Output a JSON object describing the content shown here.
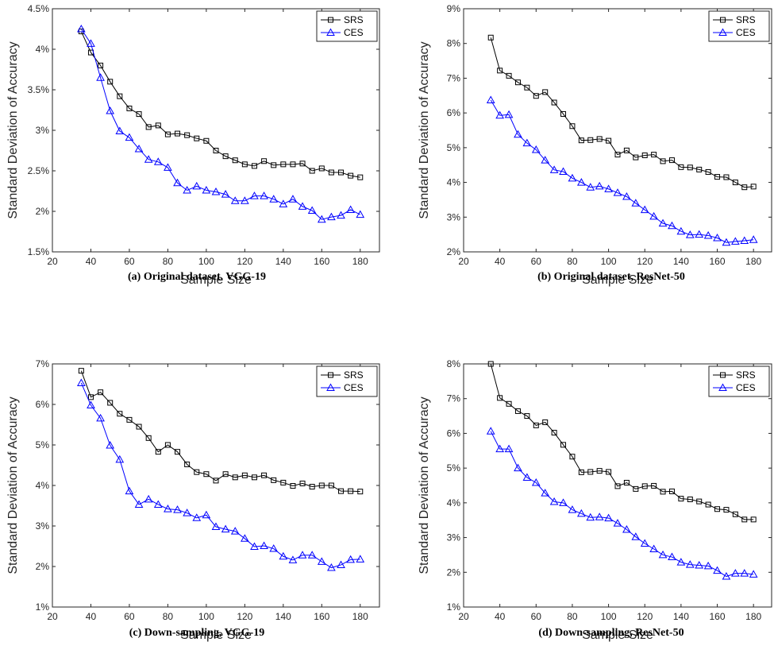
{
  "colors": {
    "SRS": "#000000",
    "CES": "#0000ff"
  },
  "chart_data": [
    {
      "type": "line",
      "caption": "(a) Original dataset. VGG-19",
      "xlabel": "Sample Size",
      "ylabel": "Standard Deviation of Accuracy",
      "xlim": [
        20,
        190
      ],
      "ylim": [
        1.5,
        4.5
      ],
      "xticks": [
        20,
        40,
        60,
        80,
        100,
        120,
        140,
        160,
        180
      ],
      "yticks": [
        1.5,
        2,
        2.5,
        3,
        3.5,
        4,
        4.5
      ],
      "ytick_labels": [
        "1.5%",
        "2%",
        "2.5%",
        "3%",
        "3.5%",
        "4%",
        "4.5%"
      ],
      "legend": "top-right",
      "x": [
        35,
        40,
        45,
        50,
        55,
        60,
        65,
        70,
        75,
        80,
        85,
        90,
        95,
        100,
        105,
        110,
        115,
        120,
        125,
        130,
        135,
        140,
        145,
        150,
        155,
        160,
        165,
        170,
        175,
        180
      ],
      "series": [
        {
          "name": "SRS",
          "marker": "square",
          "values": [
            4.22,
            3.96,
            3.8,
            3.6,
            3.42,
            3.27,
            3.2,
            3.04,
            3.06,
            2.95,
            2.96,
            2.94,
            2.9,
            2.87,
            2.75,
            2.68,
            2.63,
            2.58,
            2.56,
            2.62,
            2.57,
            2.58,
            2.58,
            2.59,
            2.5,
            2.53,
            2.48,
            2.48,
            2.44,
            2.42
          ]
        },
        {
          "name": "CES",
          "marker": "triangle",
          "values": [
            4.25,
            4.07,
            3.65,
            3.24,
            2.99,
            2.91,
            2.77,
            2.64,
            2.61,
            2.54,
            2.35,
            2.26,
            2.31,
            2.26,
            2.24,
            2.21,
            2.13,
            2.13,
            2.19,
            2.19,
            2.15,
            2.09,
            2.15,
            2.06,
            2.01,
            1.9,
            1.93,
            1.95,
            2.02,
            1.96
          ]
        }
      ]
    },
    {
      "type": "line",
      "caption": "(b) Original dataset, ResNet-50",
      "xlabel": "Sample Size",
      "ylabel": "Standard Deviation of Accuracy",
      "xlim": [
        20,
        190
      ],
      "ylim": [
        2,
        9
      ],
      "xticks": [
        20,
        40,
        60,
        80,
        100,
        120,
        140,
        160,
        180
      ],
      "yticks": [
        2,
        3,
        4,
        5,
        6,
        7,
        8,
        9
      ],
      "ytick_labels": [
        "2%",
        "3%",
        "4%",
        "5%",
        "6%",
        "7%",
        "8%",
        "9%"
      ],
      "legend": "top-right",
      "x": [
        35,
        40,
        45,
        50,
        55,
        60,
        65,
        70,
        75,
        80,
        85,
        90,
        95,
        100,
        105,
        110,
        115,
        120,
        125,
        130,
        135,
        140,
        145,
        150,
        155,
        160,
        165,
        170,
        175,
        180
      ],
      "series": [
        {
          "name": "SRS",
          "marker": "square",
          "values": [
            8.17,
            7.22,
            7.07,
            6.88,
            6.73,
            6.49,
            6.6,
            6.3,
            5.97,
            5.62,
            5.21,
            5.22,
            5.25,
            5.2,
            4.8,
            4.92,
            4.72,
            4.78,
            4.8,
            4.61,
            4.64,
            4.44,
            4.43,
            4.37,
            4.3,
            4.16,
            4.15,
            4.0,
            3.86,
            3.88
          ]
        },
        {
          "name": "CES",
          "marker": "triangle",
          "values": [
            6.37,
            5.93,
            5.95,
            5.38,
            5.13,
            4.94,
            4.64,
            4.36,
            4.31,
            4.12,
            4.0,
            3.86,
            3.89,
            3.81,
            3.7,
            3.59,
            3.4,
            3.21,
            3.02,
            2.82,
            2.75,
            2.59,
            2.49,
            2.5,
            2.47,
            2.4,
            2.27,
            2.3,
            2.32,
            2.35
          ]
        }
      ]
    },
    {
      "type": "line",
      "caption": "(c) Down-sampling, VGG-19",
      "xlabel": "Sample Size",
      "ylabel": "Standard Deviation of Accuracy",
      "xlim": [
        20,
        190
      ],
      "ylim": [
        1,
        7
      ],
      "xticks": [
        20,
        40,
        60,
        80,
        100,
        120,
        140,
        160,
        180
      ],
      "yticks": [
        1,
        2,
        3,
        4,
        5,
        6,
        7
      ],
      "ytick_labels": [
        "1%",
        "2%",
        "3%",
        "4%",
        "5%",
        "6%",
        "7%"
      ],
      "legend": "top-right",
      "x": [
        35,
        40,
        45,
        50,
        55,
        60,
        65,
        70,
        75,
        80,
        85,
        90,
        95,
        100,
        105,
        110,
        115,
        120,
        125,
        130,
        135,
        140,
        145,
        150,
        155,
        160,
        165,
        170,
        175,
        180
      ],
      "series": [
        {
          "name": "SRS",
          "marker": "square",
          "values": [
            6.83,
            6.18,
            6.3,
            6.04,
            5.77,
            5.62,
            5.45,
            5.17,
            4.83,
            5.0,
            4.83,
            4.52,
            4.33,
            4.28,
            4.12,
            4.28,
            4.2,
            4.25,
            4.2,
            4.25,
            4.13,
            4.07,
            3.99,
            4.05,
            3.97,
            4.0,
            4.0,
            3.86,
            3.86,
            3.85
          ]
        },
        {
          "name": "CES",
          "marker": "triangle",
          "values": [
            6.53,
            5.98,
            5.66,
            4.99,
            4.64,
            3.86,
            3.53,
            3.66,
            3.53,
            3.42,
            3.4,
            3.32,
            3.2,
            3.27,
            2.98,
            2.92,
            2.87,
            2.69,
            2.49,
            2.51,
            2.44,
            2.25,
            2.16,
            2.28,
            2.28,
            2.12,
            1.97,
            2.04,
            2.17,
            2.18
          ]
        }
      ]
    },
    {
      "type": "line",
      "caption": "(d) Down-sampling, ResNet-50",
      "xlabel": "Sample Size",
      "ylabel": "Standard Deviation of Accuracy",
      "xlim": [
        20,
        190
      ],
      "ylim": [
        1,
        8
      ],
      "xticks": [
        20,
        40,
        60,
        80,
        100,
        120,
        140,
        160,
        180
      ],
      "yticks": [
        1,
        2,
        3,
        4,
        5,
        6,
        7,
        8
      ],
      "ytick_labels": [
        "1%",
        "2%",
        "3%",
        "4%",
        "5%",
        "6%",
        "7%",
        "8%"
      ],
      "legend": "top-right",
      "x": [
        35,
        40,
        45,
        50,
        55,
        60,
        65,
        70,
        75,
        80,
        85,
        90,
        95,
        100,
        105,
        110,
        115,
        120,
        125,
        130,
        135,
        140,
        145,
        150,
        155,
        160,
        165,
        170,
        175,
        180
      ],
      "series": [
        {
          "name": "SRS",
          "marker": "square",
          "values": [
            8.0,
            7.02,
            6.85,
            6.64,
            6.5,
            6.23,
            6.32,
            6.02,
            5.67,
            5.33,
            4.88,
            4.89,
            4.92,
            4.89,
            4.48,
            4.58,
            4.4,
            4.48,
            4.49,
            4.32,
            4.33,
            4.12,
            4.1,
            4.04,
            3.95,
            3.82,
            3.8,
            3.67,
            3.52,
            3.52
          ]
        },
        {
          "name": "CES",
          "marker": "triangle",
          "values": [
            6.06,
            5.55,
            5.55,
            5.0,
            4.73,
            4.58,
            4.28,
            4.03,
            4.0,
            3.8,
            3.69,
            3.58,
            3.59,
            3.56,
            3.41,
            3.23,
            3.02,
            2.83,
            2.67,
            2.5,
            2.44,
            2.29,
            2.22,
            2.2,
            2.18,
            2.05,
            1.88,
            1.97,
            1.97,
            1.94
          ]
        }
      ]
    }
  ]
}
